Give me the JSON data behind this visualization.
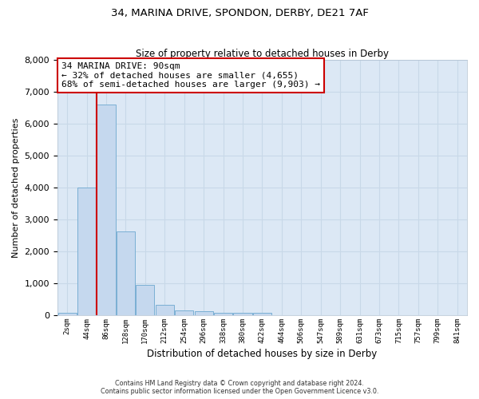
{
  "title_line1": "34, MARINA DRIVE, SPONDON, DERBY, DE21 7AF",
  "title_line2": "Size of property relative to detached houses in Derby",
  "xlabel": "Distribution of detached houses by size in Derby",
  "ylabel": "Number of detached properties",
  "footnote1": "Contains HM Land Registry data © Crown copyright and database right 2024.",
  "footnote2": "Contains public sector information licensed under the Open Government Licence v3.0.",
  "annotation_title": "34 MARINA DRIVE: 90sqm",
  "annotation_line1": "← 32% of detached houses are smaller (4,655)",
  "annotation_line2": "68% of semi-detached houses are larger (9,903) →",
  "bar_color": "#c5d8ee",
  "bar_edge_color": "#7aafd4",
  "marker_line_color": "#cc0000",
  "annotation_box_edge_color": "#cc0000",
  "background_color": "#dce8f5",
  "grid_color": "#c8d8e8",
  "ylim": [
    0,
    8000
  ],
  "yticks": [
    0,
    1000,
    2000,
    3000,
    4000,
    5000,
    6000,
    7000,
    8000
  ],
  "categories": [
    "2sqm",
    "44sqm",
    "86sqm",
    "128sqm",
    "170sqm",
    "212sqm",
    "254sqm",
    "296sqm",
    "338sqm",
    "380sqm",
    "422sqm",
    "464sqm",
    "506sqm",
    "547sqm",
    "589sqm",
    "631sqm",
    "673sqm",
    "715sqm",
    "757sqm",
    "799sqm",
    "841sqm"
  ],
  "bar_values": [
    70,
    4000,
    6600,
    2620,
    960,
    320,
    140,
    120,
    80,
    70,
    65,
    0,
    0,
    0,
    0,
    0,
    0,
    0,
    0,
    0,
    0
  ],
  "marker_bar_index": 1.5
}
